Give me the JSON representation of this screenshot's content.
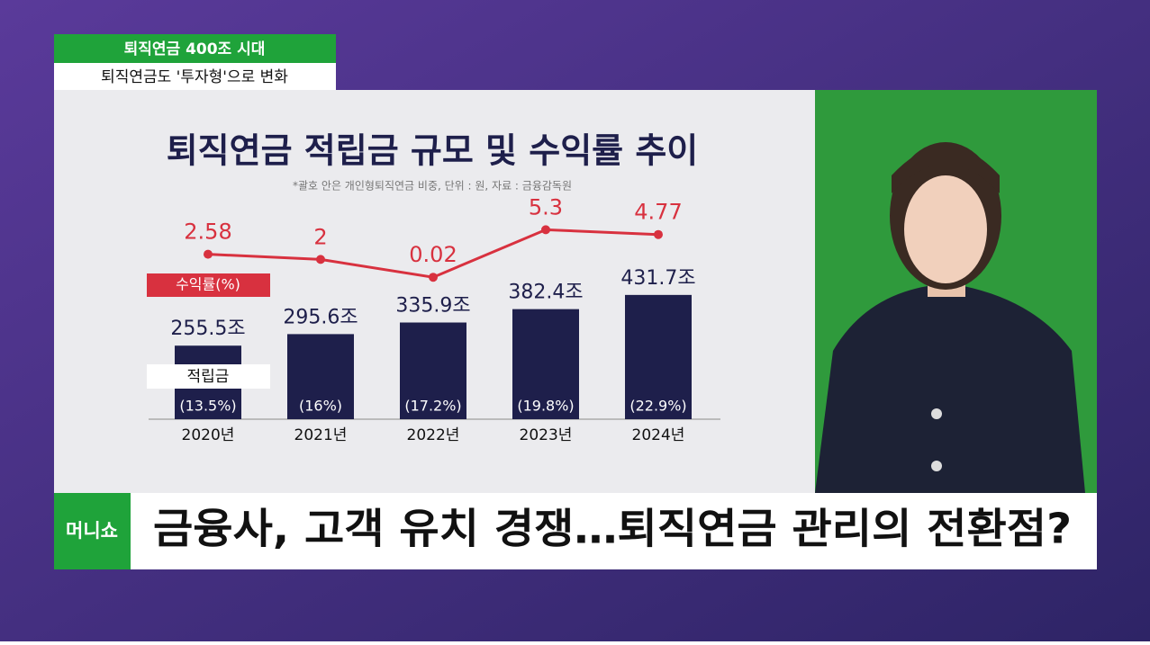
{
  "caption": {
    "top": "퇴직연금 400조 시대",
    "sub": "퇴직연금도 '투자형'으로 변화"
  },
  "headline": "금융사, 고객 유치 경쟁…퇴직연금 관리의 전환점?",
  "logo": "머니쇼",
  "chart_data": {
    "type": "bar",
    "title": "퇴직연금 적립금 규모 및 수익률 추이",
    "subtitle": "*괄호 안은 개인형퇴직연금 비중, 단위 : 원, 자료 : 금융감독원",
    "categories": [
      "2020년",
      "2021년",
      "2022년",
      "2023년",
      "2024년"
    ],
    "series": [
      {
        "name": "적립금",
        "type": "bar",
        "color": "#1e1f4b",
        "values": [
          255.5,
          295.6,
          335.9,
          382.4,
          431.7
        ],
        "value_labels": [
          "255.5조",
          "295.6조",
          "335.9조",
          "382.4조",
          "431.7조"
        ],
        "share_labels": [
          "(13.5%)",
          "(16%)",
          "(17.2%)",
          "(19.8%)",
          "(22.9%)"
        ]
      },
      {
        "name": "수익률(%)",
        "type": "line",
        "color": "#d8313f",
        "values": [
          2.58,
          2,
          0.02,
          5.3,
          4.77
        ]
      }
    ]
  }
}
